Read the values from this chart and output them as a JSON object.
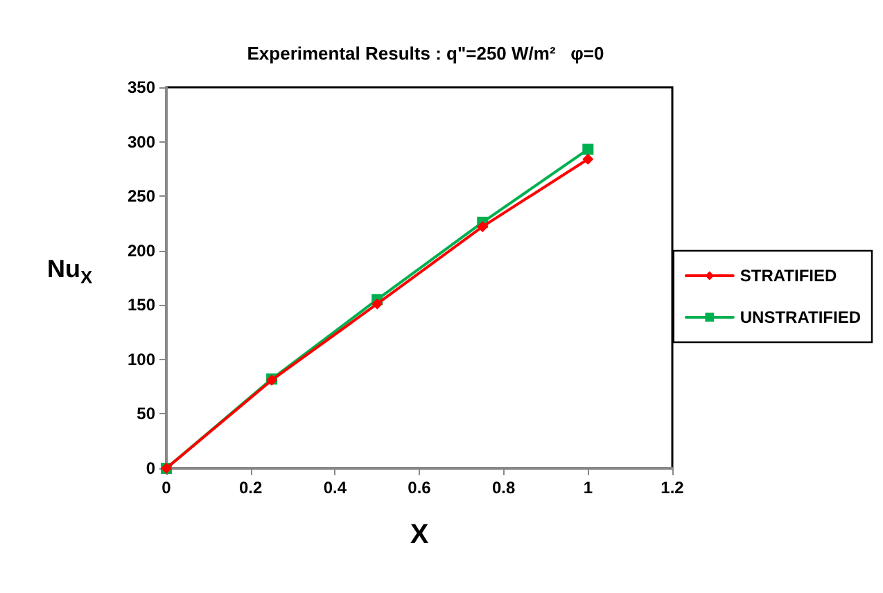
{
  "chart_data": {
    "type": "line",
    "title": "Experimental Results : q\"=250 W/m²   φ=0",
    "xlabel": "X",
    "ylabel": "Nu$_{X}$",
    "x": [
      0,
      0.25,
      0.5,
      0.75,
      1
    ],
    "series": [
      {
        "name": "STRATIFIED",
        "color": "#ff0000",
        "marker": "diamond",
        "values": [
          0,
          81,
          151,
          222,
          284
        ]
      },
      {
        "name": "UNSTRATIFIED",
        "color": "#00b050",
        "marker": "square",
        "values": [
          0,
          82,
          155,
          226,
          293
        ]
      }
    ],
    "xlim": [
      0,
      1.2
    ],
    "xticks": [
      0,
      0.2,
      0.4,
      0.6,
      0.8,
      1,
      1.2
    ],
    "ylim": [
      0,
      350
    ],
    "yticks": [
      0,
      50,
      100,
      150,
      200,
      250,
      300,
      350
    ],
    "grid": false,
    "legend": "right",
    "line_style": "solid"
  }
}
